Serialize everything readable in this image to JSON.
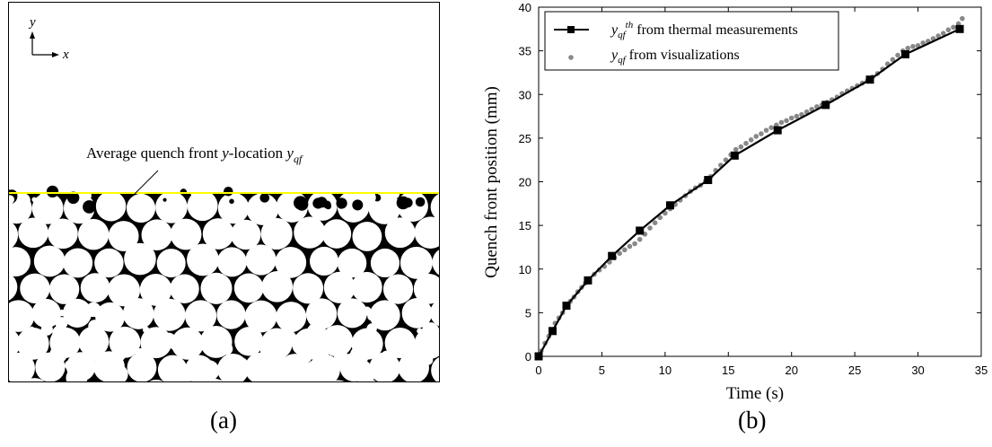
{
  "panel_a": {
    "label": "(a)",
    "axis_x": "x",
    "axis_y": "y",
    "annotation_text": "Average quench front y-location y",
    "annotation_parts": {
      "pre": "Average quench front ",
      "y": "y",
      "mid": "-location ",
      "sym": "y",
      "sub": "qf"
    },
    "quench_line_color": "#ffff00"
  },
  "panel_b": {
    "label": "(b)",
    "chart_data": {
      "type": "line",
      "xlabel": "Time (s)",
      "ylabel": "Quench front position (mm)",
      "xlim": [
        0,
        35
      ],
      "ylim": [
        0,
        40
      ],
      "xticks": [
        0,
        5,
        10,
        15,
        20,
        25,
        30,
        35
      ],
      "yticks": [
        0,
        5,
        10,
        15,
        20,
        25,
        30,
        35,
        40
      ],
      "grid": false,
      "legend_position": "top-left",
      "series": [
        {
          "name": "y_qf^th from thermal measurements",
          "legend_sym": "y",
          "legend_sub": "qf",
          "legend_sup": "th",
          "legend_text": " from thermal measurements",
          "style": "line-square",
          "color": "#000000",
          "x": [
            0,
            1.1,
            2.2,
            3.9,
            5.8,
            8.0,
            10.4,
            13.4,
            15.5,
            18.9,
            22.7,
            26.2,
            29.0,
            33.3
          ],
          "y": [
            0,
            2.9,
            5.8,
            8.7,
            11.5,
            14.4,
            17.3,
            20.2,
            23.0,
            25.9,
            28.8,
            31.7,
            34.6,
            37.5
          ]
        },
        {
          "name": "y_qf from visualizations",
          "legend_sym": "y",
          "legend_sub": "qf",
          "legend_text": "  from visualizations",
          "style": "scatter",
          "color": "#888888",
          "x": [
            0.2,
            0.5,
            0.8,
            1.0,
            1.3,
            1.6,
            1.9,
            2.2,
            2.5,
            2.8,
            3.1,
            3.4,
            3.7,
            4.0,
            4.4,
            4.8,
            5.2,
            5.6,
            6.0,
            6.4,
            6.8,
            7.2,
            7.6,
            8.0,
            8.4,
            8.8,
            9.2,
            9.6,
            10.0,
            10.4,
            10.8,
            11.2,
            11.6,
            12.0,
            12.4,
            12.8,
            13.2,
            13.6,
            14.0,
            14.4,
            14.8,
            15.2,
            15.6,
            16.0,
            16.4,
            16.8,
            17.2,
            17.6,
            18.0,
            18.4,
            18.8,
            19.2,
            19.6,
            20.0,
            20.4,
            20.8,
            21.2,
            21.6,
            22.0,
            22.4,
            22.8,
            23.2,
            23.6,
            24.0,
            24.4,
            24.8,
            25.2,
            25.6,
            26.0,
            26.4,
            26.8,
            27.2,
            27.6,
            28.0,
            28.4,
            28.8,
            29.2,
            29.6,
            30.0,
            30.4,
            30.8,
            31.2,
            31.6,
            32.0,
            32.4,
            32.8,
            33.2,
            33.5
          ],
          "y": [
            0.6,
            1.5,
            2.3,
            3.0,
            3.8,
            4.4,
            5.0,
            5.7,
            6.3,
            6.8,
            7.4,
            7.9,
            8.4,
            8.9,
            9.4,
            9.9,
            10.3,
            10.8,
            11.3,
            11.8,
            12.2,
            12.6,
            12.9,
            13.4,
            14.0,
            14.7,
            15.3,
            15.9,
            16.4,
            16.9,
            17.4,
            17.9,
            18.4,
            18.9,
            19.3,
            19.6,
            20.1,
            20.6,
            21.3,
            21.9,
            22.5,
            23.1,
            23.7,
            24.0,
            24.4,
            24.8,
            25.2,
            25.5,
            25.9,
            26.2,
            26.5,
            26.8,
            27.0,
            27.3,
            27.5,
            27.7,
            28.0,
            28.3,
            28.6,
            28.8,
            29.1,
            29.4,
            29.7,
            30.1,
            30.4,
            30.7,
            31.0,
            31.3,
            31.6,
            32.0,
            32.4,
            32.9,
            33.5,
            34.0,
            34.5,
            35.0,
            35.3,
            35.5,
            35.6,
            35.9,
            36.1,
            36.4,
            36.7,
            37.0,
            37.4,
            37.7,
            38.1,
            38.7
          ]
        }
      ]
    }
  }
}
